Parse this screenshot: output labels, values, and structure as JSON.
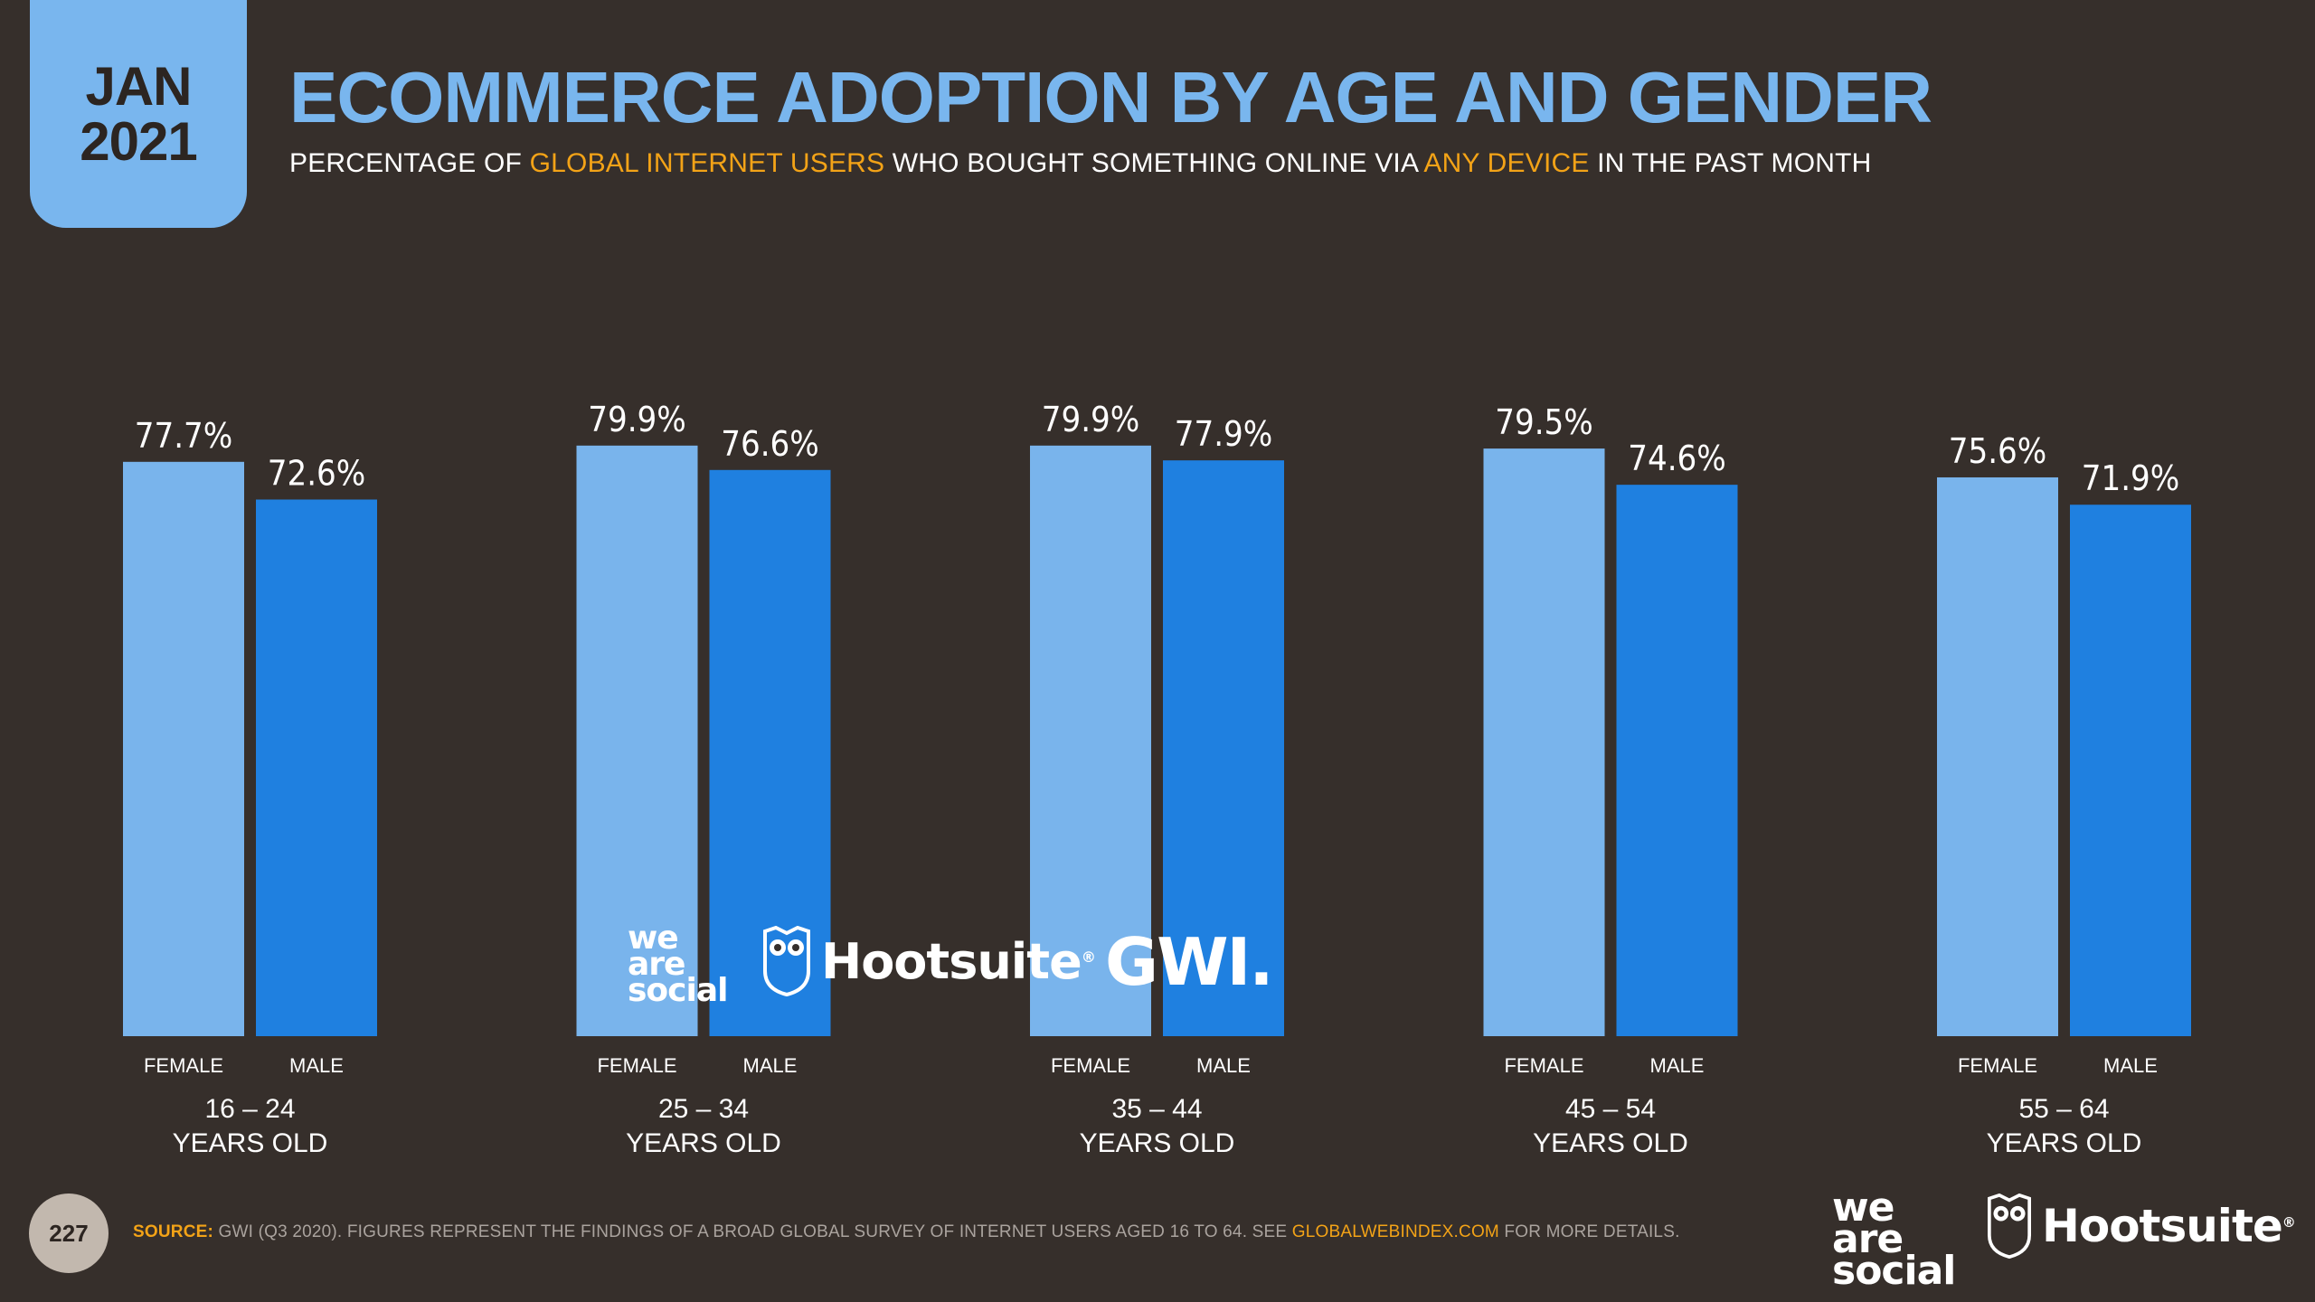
{
  "date_badge": {
    "month": "JAN",
    "year": "2021"
  },
  "title": "ECOMMERCE ADOPTION BY AGE AND GENDER",
  "subtitle": {
    "part1": "PERCENTAGE OF ",
    "highlight1": "GLOBAL INTERNET USERS",
    "part2": " WHO BOUGHT SOMETHING ONLINE VIA ",
    "highlight2": "ANY DEVICE",
    "part3": " IN THE PAST MONTH"
  },
  "colors": {
    "female": "#79b4ec",
    "male": "#1f80e0",
    "accent": "#f3a317",
    "background": "#362f2b"
  },
  "chart_data": {
    "type": "bar",
    "title": "ECOMMERCE ADOPTION BY AGE AND GENDER",
    "categories": [
      {
        "line1": "16 – 24",
        "line2": "YEARS OLD"
      },
      {
        "line1": "25 – 34",
        "line2": "YEARS OLD"
      },
      {
        "line1": "35 – 44",
        "line2": "YEARS OLD"
      },
      {
        "line1": "45 – 54",
        "line2": "YEARS OLD"
      },
      {
        "line1": "55 – 64",
        "line2": "YEARS OLD"
      }
    ],
    "series": [
      {
        "name": "FEMALE",
        "values": [
          77.7,
          79.9,
          79.9,
          79.5,
          75.6
        ],
        "labels": [
          "77.7%",
          "79.9%",
          "79.9%",
          "79.5%",
          "75.6%"
        ]
      },
      {
        "name": "MALE",
        "values": [
          72.6,
          76.6,
          77.9,
          74.6,
          71.9
        ],
        "labels": [
          "72.6%",
          "76.6%",
          "77.9%",
          "74.6%",
          "71.9%"
        ]
      }
    ],
    "ylim": [
      0,
      100
    ],
    "xlabel": "",
    "ylabel": "",
    "grid": false
  },
  "logos": {
    "we_are_social": [
      "we",
      "are",
      "social"
    ],
    "hootsuite": "Hootsuite",
    "gwi": "GWI."
  },
  "footer": {
    "page_number": "227",
    "source_label": "SOURCE:",
    "source_text": " GWI (Q3 2020). FIGURES REPRESENT THE FINDINGS OF A BROAD GLOBAL SURVEY OF INTERNET USERS AGED 16 TO 64. SEE ",
    "source_url": "GLOBALWEBINDEX.COM",
    "source_tail": " FOR MORE DETAILS."
  }
}
